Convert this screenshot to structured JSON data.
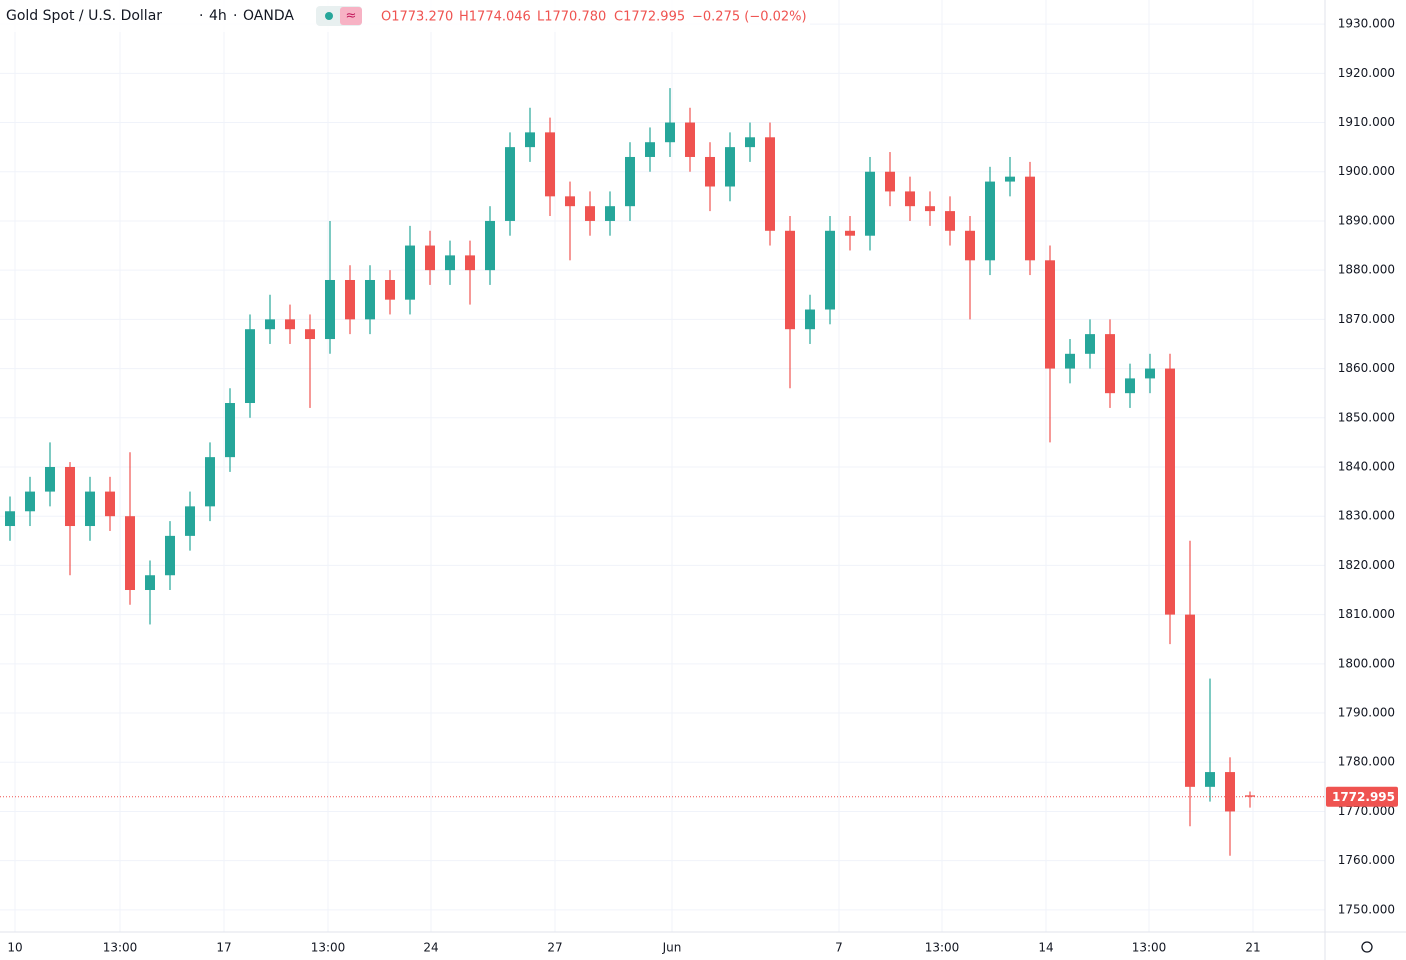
{
  "header": {
    "symbol": "Gold Spot / U.S. Dollar",
    "interval": "4h",
    "source": "OANDA",
    "ohlc": [
      "O1773.270",
      "H1774.046",
      "L1770.780",
      "C1772.995"
    ],
    "change": "−0.275 (−0.02%)"
  },
  "chart_data": {
    "type": "candlestick",
    "up_color": "#26a69a",
    "down_color": "#ef5350",
    "grid": true,
    "open": [
      1828,
      1831,
      1835,
      1840,
      1828,
      1835,
      1830,
      1815,
      1818,
      1826,
      1832,
      1842,
      1853,
      1868,
      1870,
      1868,
      1866,
      1878,
      1870,
      1878,
      1874,
      1885,
      1880,
      1883,
      1880,
      1890,
      1905,
      1908,
      1895,
      1893,
      1890,
      1893,
      1903,
      1906,
      1910,
      1903,
      1897,
      1905,
      1907,
      1888,
      1868,
      1872,
      1888,
      1887,
      1900,
      1896,
      1893,
      1892,
      1888,
      1882,
      1898,
      1899,
      1882,
      1860,
      1863,
      1867,
      1855,
      1858,
      1860,
      1810,
      1775,
      1778,
      1773.27
    ],
    "high": [
      1834,
      1838,
      1845,
      1841,
      1838,
      1838,
      1843,
      1821,
      1829,
      1835,
      1845,
      1856,
      1871,
      1875,
      1873,
      1871,
      1890,
      1881,
      1881,
      1880,
      1889,
      1888,
      1886,
      1886,
      1893,
      1908,
      1913,
      1911,
      1898,
      1896,
      1896,
      1906,
      1909,
      1917,
      1913,
      1906,
      1908,
      1910,
      1910,
      1891,
      1875,
      1891,
      1891,
      1903,
      1904,
      1899,
      1896,
      1895,
      1891,
      1901,
      1903,
      1902,
      1885,
      1866,
      1870,
      1870,
      1861,
      1863,
      1863,
      1825,
      1797,
      1781,
      1774.046
    ],
    "low": [
      1825,
      1828,
      1832,
      1818,
      1825,
      1827,
      1812,
      1808,
      1815,
      1823,
      1829,
      1839,
      1850,
      1865,
      1865,
      1852,
      1863,
      1867,
      1867,
      1871,
      1871,
      1877,
      1877,
      1873,
      1877,
      1887,
      1902,
      1891,
      1882,
      1887,
      1887,
      1890,
      1900,
      1903,
      1900,
      1892,
      1894,
      1902,
      1885,
      1856,
      1865,
      1869,
      1884,
      1884,
      1893,
      1890,
      1889,
      1885,
      1870,
      1879,
      1895,
      1879,
      1845,
      1857,
      1860,
      1852,
      1852,
      1855,
      1804,
      1767,
      1772,
      1761,
      1770.78
    ],
    "close": [
      1831,
      1835,
      1840,
      1828,
      1835,
      1830,
      1815,
      1818,
      1826,
      1832,
      1842,
      1853,
      1868,
      1870,
      1868,
      1866,
      1878,
      1870,
      1878,
      1874,
      1885,
      1880,
      1883,
      1880,
      1890,
      1905,
      1908,
      1895,
      1893,
      1890,
      1893,
      1903,
      1906,
      1910,
      1903,
      1897,
      1905,
      1907,
      1888,
      1868,
      1872,
      1888,
      1887,
      1900,
      1896,
      1893,
      1892,
      1888,
      1882,
      1898,
      1899,
      1882,
      1860,
      1863,
      1867,
      1855,
      1858,
      1860,
      1810,
      1775,
      1778,
      1770,
      1772.995
    ],
    "xlim": [
      -0.5,
      65.75
    ],
    "xticks": [
      {
        "value": 0.25,
        "label": "10"
      },
      {
        "value": 5.5,
        "label": "13:00"
      },
      {
        "value": 10.7,
        "label": "17"
      },
      {
        "value": 15.9,
        "label": "13:00"
      },
      {
        "value": 21.05,
        "label": "24"
      },
      {
        "value": 27.25,
        "label": "27"
      },
      {
        "value": 33.1,
        "label": "Jun"
      },
      {
        "value": 41.45,
        "label": "7"
      },
      {
        "value": 46.6,
        "label": "13:00"
      },
      {
        "value": 51.8,
        "label": "14"
      },
      {
        "value": 56.95,
        "label": "13:00"
      },
      {
        "value": 62.15,
        "label": "21"
      }
    ],
    "ylim": [
      1745.5,
      1934.9
    ],
    "yticks": [
      {
        "value": 1750,
        "label": "1750.000"
      },
      {
        "value": 1760,
        "label": "1760.000"
      },
      {
        "value": 1770,
        "label": "1770.000"
      },
      {
        "value": 1780,
        "label": "1780.000"
      },
      {
        "value": 1790,
        "label": "1790.000"
      },
      {
        "value": 1800,
        "label": "1800.000"
      },
      {
        "value": 1810,
        "label": "1810.000"
      },
      {
        "value": 1820,
        "label": "1820.000"
      },
      {
        "value": 1830,
        "label": "1830.000"
      },
      {
        "value": 1840,
        "label": "1840.000"
      },
      {
        "value": 1850,
        "label": "1850.000"
      },
      {
        "value": 1860,
        "label": "1860.000"
      },
      {
        "value": 1870,
        "label": "1870.000"
      },
      {
        "value": 1880,
        "label": "1880.000"
      },
      {
        "value": 1890,
        "label": "1890.000"
      },
      {
        "value": 1900,
        "label": "1900.000"
      },
      {
        "value": 1910,
        "label": "1910.000"
      },
      {
        "value": 1920,
        "label": "1920.000"
      },
      {
        "value": 1930,
        "label": "1930.000"
      }
    ],
    "last_price": {
      "value": 1772.995,
      "label": "1772.995"
    }
  }
}
